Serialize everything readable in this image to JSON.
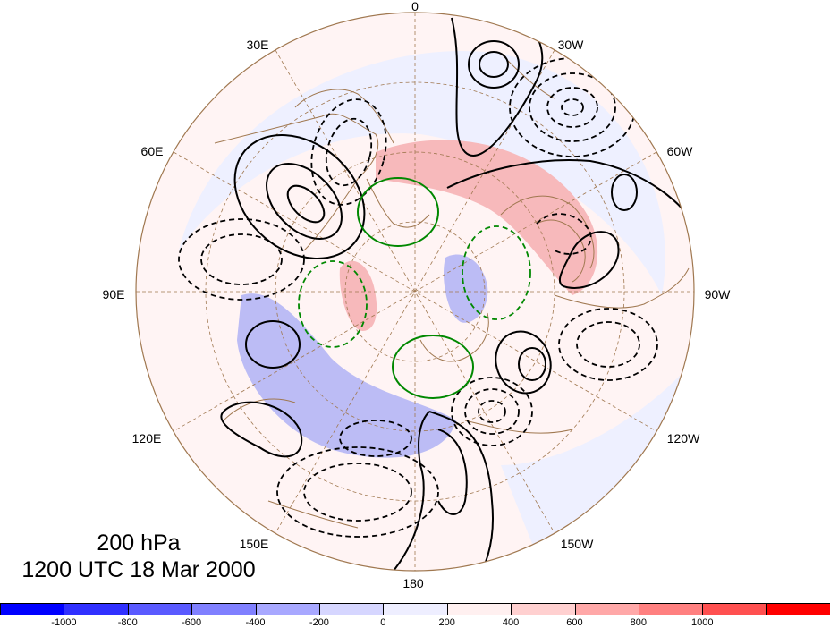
{
  "longitude_labels": [
    {
      "id": "0",
      "text": "0"
    },
    {
      "id": "30W",
      "text": "30W"
    },
    {
      "id": "60W",
      "text": "60W"
    },
    {
      "id": "90W",
      "text": "90W"
    },
    {
      "id": "120W",
      "text": "120W"
    },
    {
      "id": "150W",
      "text": "150W"
    },
    {
      "id": "180",
      "text": "180"
    },
    {
      "id": "150E",
      "text": "150E"
    },
    {
      "id": "120E",
      "text": "120E"
    },
    {
      "id": "90E",
      "text": "90E"
    },
    {
      "id": "60E",
      "text": "60E"
    },
    {
      "id": "30E",
      "text": "30E"
    }
  ],
  "caption": {
    "level": "200 hPa",
    "time": "1200 UTC 18 Mar 2000"
  },
  "colorbar": {
    "colors": [
      "#0000ff",
      "#3030ff",
      "#5a5aff",
      "#8080ff",
      "#a8a8ff",
      "#d6d6ff",
      "#eeeeff",
      "#fff0f0",
      "#ffd0d0",
      "#ffa8a8",
      "#ff8080",
      "#ff5050",
      "#ff0000"
    ],
    "ticks": [
      "-1000",
      "-800",
      "-600",
      "-400",
      "-200",
      "0",
      "200",
      "400",
      "600",
      "800",
      "1000"
    ]
  },
  "style": {
    "positive_contour": "#000000",
    "negative_contour": "#000000",
    "green_contour": "#008800",
    "coastline": "#a07850",
    "grid": "#a07850"
  }
}
